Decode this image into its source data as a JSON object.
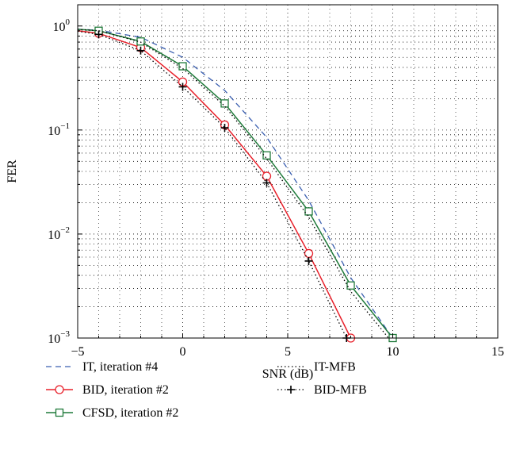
{
  "chart_data": {
    "type": "line",
    "xlabel": "SNR (dB)",
    "ylabel": "FER",
    "xlim": [
      -5,
      15
    ],
    "ylim": [
      0.001,
      1.6
    ],
    "yscale": "log",
    "grid": true,
    "legend_position": "bottom",
    "x_ticks": [
      {
        "value": -5,
        "label": "−5"
      },
      {
        "value": 0,
        "label": "0"
      },
      {
        "value": 5,
        "label": "5"
      },
      {
        "value": 10,
        "label": "10"
      },
      {
        "value": 15,
        "label": "15"
      }
    ],
    "y_ticks": [
      {
        "value": 1,
        "base": "10",
        "exp": "0"
      },
      {
        "value": 0.1,
        "base": "10",
        "exp": "−1"
      },
      {
        "value": 0.01,
        "base": "10",
        "exp": "−2"
      },
      {
        "value": 0.001,
        "base": "10",
        "exp": "−3"
      }
    ],
    "series": [
      {
        "name": "IT, iteration #4",
        "color": "#3a5fb0",
        "dash": "dashed",
        "marker": "none",
        "x": [
          -5,
          -4,
          -2,
          0,
          2,
          4,
          6,
          8,
          10
        ],
        "y": [
          0.93,
          0.91,
          0.78,
          0.5,
          0.24,
          0.085,
          0.021,
          0.0038,
          0.001
        ]
      },
      {
        "name": "BID, iteration #2",
        "color": "#e8202a",
        "dash": "solid",
        "marker": "circle",
        "x": [
          -5,
          -4,
          -2,
          0,
          2,
          4,
          6,
          8
        ],
        "y": [
          0.9,
          0.85,
          0.62,
          0.29,
          0.112,
          0.036,
          0.0065,
          0.001
        ]
      },
      {
        "name": "CFSD, iteration #2",
        "color": "#1f7a3a",
        "dash": "solid",
        "marker": "square",
        "x": [
          -5,
          -4,
          -2,
          0,
          2,
          4,
          6,
          8,
          10
        ],
        "y": [
          0.93,
          0.9,
          0.71,
          0.41,
          0.18,
          0.057,
          0.0165,
          0.0032,
          0.001
        ]
      },
      {
        "name": "IT-MFB",
        "color": "#000000",
        "dash": "dotted",
        "marker": "none",
        "x": [
          -5,
          -4,
          -2,
          0,
          2,
          4,
          6,
          8,
          9.8
        ],
        "y": [
          0.93,
          0.9,
          0.7,
          0.39,
          0.17,
          0.053,
          0.0145,
          0.0028,
          0.001
        ]
      },
      {
        "name": "BID-MFB",
        "color": "#000000",
        "dash": "dotted",
        "marker": "plus",
        "x": [
          -5,
          -4,
          -2,
          0,
          2,
          4,
          6,
          7.8
        ],
        "y": [
          0.89,
          0.83,
          0.58,
          0.26,
          0.105,
          0.031,
          0.0055,
          0.001
        ]
      }
    ],
    "legend": [
      {
        "label": "IT, iteration #4"
      },
      {
        "label": "BID, iteration #2"
      },
      {
        "label": "CFSD, iteration #2"
      },
      {
        "label": "IT-MFB"
      },
      {
        "label": "BID-MFB"
      }
    ]
  }
}
